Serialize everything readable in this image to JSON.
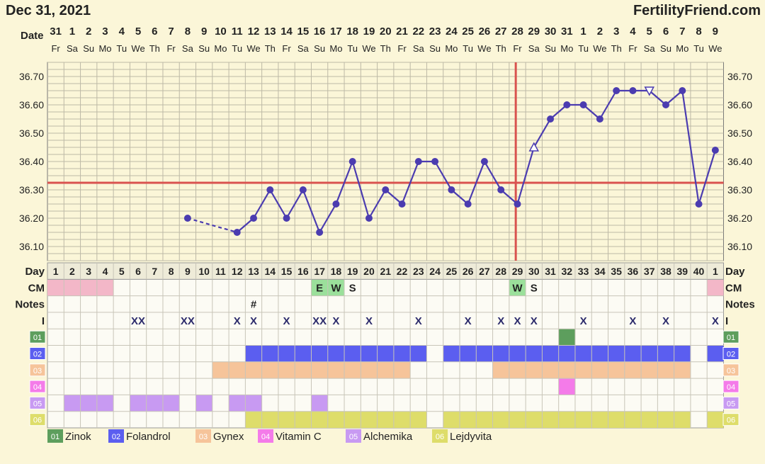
{
  "header": {
    "date": "Dec 31, 2021",
    "site": "FertilityFriend.com"
  },
  "colors": {
    "background": "#fbf6d8",
    "grid": "#bdb9a6",
    "temperature_line": "#4b3cb0",
    "coverline": "#d9534f",
    "ovulation_line": "#d9534f",
    "cm_menstrual": "#f3b7c8",
    "cm_egg_white": "#9be09b",
    "supplement_01": "#5d9e5d",
    "supplement_02": "#5b5ef0",
    "supplement_03": "#f6c49a",
    "supplement_04": "#f47be9",
    "supplement_05": "#c89af2",
    "supplement_06": "#dedd6a"
  },
  "row_labels": {
    "date": "Date",
    "day": "Day",
    "cm": "CM",
    "notes": "Notes",
    "intercourse": "I"
  },
  "dates": [
    "31",
    "1",
    "2",
    "3",
    "4",
    "5",
    "6",
    "7",
    "8",
    "9",
    "10",
    "11",
    "12",
    "13",
    "14",
    "15",
    "16",
    "17",
    "18",
    "19",
    "20",
    "21",
    "22",
    "23",
    "24",
    "25",
    "26",
    "27",
    "28",
    "29",
    "30",
    "31",
    "1",
    "2",
    "3",
    "4",
    "5",
    "6",
    "7",
    "8",
    "9"
  ],
  "weekdays": [
    "Fr",
    "Sa",
    "Su",
    "Mo",
    "Tu",
    "We",
    "Th",
    "Fr",
    "Sa",
    "Su",
    "Mo",
    "Tu",
    "We",
    "Th",
    "Fr",
    "Sa",
    "Su",
    "Mo",
    "Tu",
    "We",
    "Th",
    "Fr",
    "Sa",
    "Su",
    "Mo",
    "Tu",
    "We",
    "Th",
    "Fr",
    "Sa",
    "Su",
    "Mo",
    "Tu",
    "We",
    "Th",
    "Fr",
    "Sa",
    "Su",
    "Mo",
    "Tu",
    "We"
  ],
  "cycle_days": [
    "1",
    "2",
    "3",
    "4",
    "5",
    "6",
    "7",
    "8",
    "9",
    "10",
    "11",
    "12",
    "13",
    "14",
    "15",
    "16",
    "17",
    "18",
    "19",
    "20",
    "21",
    "22",
    "23",
    "24",
    "25",
    "26",
    "27",
    "28",
    "29",
    "30",
    "31",
    "32",
    "33",
    "34",
    "35",
    "36",
    "37",
    "38",
    "39",
    "40",
    "1"
  ],
  "cm": [
    {
      "day": 1,
      "code": "",
      "type": "menstrual"
    },
    {
      "day": 2,
      "code": "",
      "type": "menstrual"
    },
    {
      "day": 3,
      "code": "",
      "type": "menstrual"
    },
    {
      "day": 4,
      "code": "",
      "type": "menstrual"
    },
    {
      "day": 17,
      "code": "E",
      "type": "egg_white"
    },
    {
      "day": 18,
      "code": "W",
      "type": "egg_white"
    },
    {
      "day": 19,
      "code": "S",
      "type": "none"
    },
    {
      "day": 29,
      "code": "W",
      "type": "egg_white"
    },
    {
      "day": 30,
      "code": "S",
      "type": "none"
    },
    {
      "day": 41,
      "code": "",
      "type": "menstrual"
    }
  ],
  "notes": [
    {
      "day": 13,
      "text": "#"
    }
  ],
  "intercourse": [
    {
      "day": 6,
      "mark": "XX"
    },
    {
      "day": 9,
      "mark": "XX"
    },
    {
      "day": 12,
      "mark": "X"
    },
    {
      "day": 13,
      "mark": "X"
    },
    {
      "day": 15,
      "mark": "X"
    },
    {
      "day": 17,
      "mark": "XX"
    },
    {
      "day": 18,
      "mark": "X"
    },
    {
      "day": 20,
      "mark": "X"
    },
    {
      "day": 23,
      "mark": "X"
    },
    {
      "day": 26,
      "mark": "X"
    },
    {
      "day": 28,
      "mark": "X"
    },
    {
      "day": 29,
      "mark": "X"
    },
    {
      "day": 30,
      "mark": "X"
    },
    {
      "day": 33,
      "mark": "X"
    },
    {
      "day": 36,
      "mark": "X"
    },
    {
      "day": 38,
      "mark": "X"
    },
    {
      "day": 41,
      "mark": "X"
    }
  ],
  "supplements": [
    {
      "code": "01",
      "name": "Zinok",
      "days": [
        32
      ]
    },
    {
      "code": "02",
      "name": "Folandrol",
      "days": [
        13,
        14,
        15,
        16,
        17,
        18,
        19,
        20,
        21,
        22,
        23,
        25,
        26,
        27,
        28,
        29,
        30,
        31,
        32,
        33,
        34,
        35,
        36,
        37,
        38,
        39,
        41
      ]
    },
    {
      "code": "03",
      "name": "Gynex",
      "days": [
        11,
        12,
        13,
        14,
        15,
        16,
        17,
        18,
        19,
        20,
        21,
        22,
        28,
        29,
        30,
        31,
        32,
        33,
        34,
        35,
        36,
        37,
        38,
        39
      ]
    },
    {
      "code": "04",
      "name": "Vitamin C",
      "days": [
        32
      ]
    },
    {
      "code": "05",
      "name": "Alchemika",
      "days": [
        2,
        3,
        4,
        6,
        7,
        8,
        10,
        12,
        13,
        17
      ]
    },
    {
      "code": "06",
      "name": "Lejdyvita",
      "days": [
        13,
        14,
        15,
        16,
        17,
        18,
        19,
        20,
        21,
        22,
        23,
        25,
        26,
        27,
        28,
        29,
        30,
        31,
        32,
        33,
        34,
        35,
        36,
        37,
        38,
        39,
        41
      ]
    }
  ],
  "chart_data": {
    "type": "line",
    "x_axis": "cycle day",
    "ylim": [
      36.05,
      36.75
    ],
    "yticks": [
      "36.10",
      "36.20",
      "36.30",
      "36.40",
      "36.50",
      "36.60",
      "36.70"
    ],
    "coverline": 36.325,
    "ovulation_day": 29,
    "points": [
      {
        "day": 9,
        "temp": 36.2
      },
      {
        "day": 12,
        "temp": 36.15
      },
      {
        "day": 13,
        "temp": 36.2
      },
      {
        "day": 14,
        "temp": 36.3
      },
      {
        "day": 15,
        "temp": 36.2
      },
      {
        "day": 16,
        "temp": 36.3
      },
      {
        "day": 17,
        "temp": 36.15
      },
      {
        "day": 18,
        "temp": 36.25
      },
      {
        "day": 19,
        "temp": 36.4
      },
      {
        "day": 20,
        "temp": 36.2
      },
      {
        "day": 21,
        "temp": 36.3
      },
      {
        "day": 22,
        "temp": 36.25
      },
      {
        "day": 23,
        "temp": 36.4
      },
      {
        "day": 24,
        "temp": 36.4
      },
      {
        "day": 25,
        "temp": 36.3
      },
      {
        "day": 26,
        "temp": 36.25
      },
      {
        "day": 27,
        "temp": 36.4
      },
      {
        "day": 28,
        "temp": 36.3
      },
      {
        "day": 29,
        "temp": 36.25
      },
      {
        "day": 30,
        "temp": 36.45
      },
      {
        "day": 31,
        "temp": 36.55
      },
      {
        "day": 32,
        "temp": 36.6
      },
      {
        "day": 33,
        "temp": 36.6
      },
      {
        "day": 34,
        "temp": 36.55
      },
      {
        "day": 35,
        "temp": 36.65
      },
      {
        "day": 36,
        "temp": 36.65
      },
      {
        "day": 37,
        "temp": 36.65
      },
      {
        "day": 38,
        "temp": 36.6
      },
      {
        "day": 39,
        "temp": 36.65
      },
      {
        "day": 40,
        "temp": 36.25
      },
      {
        "day": 41,
        "temp": 36.44
      }
    ],
    "hollow_up_markers": [
      30
    ],
    "hollow_down_markers": [
      37
    ],
    "dashed_segments": [
      [
        9,
        12
      ]
    ]
  }
}
